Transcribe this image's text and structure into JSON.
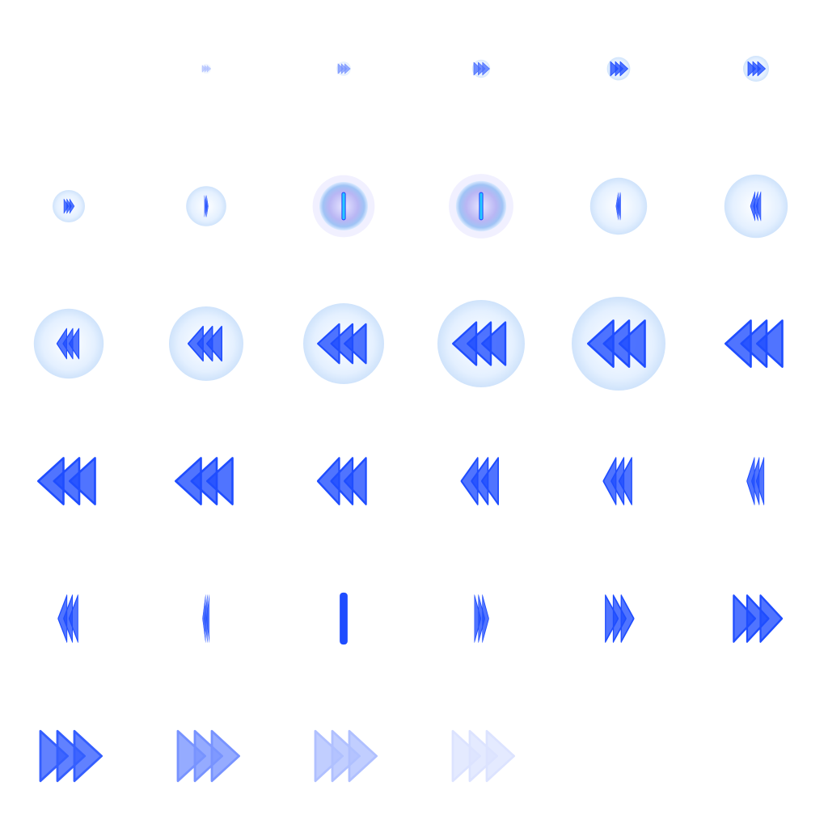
{
  "sheet": {
    "kind": "sprite-sheet",
    "description_visible_text": "",
    "accent": "#1f4dff",
    "accent_light": "#7f9bff",
    "glow": "#e4f0ff",
    "glow_rim": "#cfe3fb",
    "bar_highlight": "#27c7ff",
    "frames": [
      {
        "icon": "fast-forward-icon",
        "bubble": 0.15,
        "arrows": 0.1,
        "opacity": 0.35,
        "flip": false,
        "squash": 1.0
      },
      {
        "icon": "fast-forward-icon",
        "bubble": 0.22,
        "arrows": 0.14,
        "opacity": 0.6,
        "flip": false,
        "squash": 1.0
      },
      {
        "icon": "fast-forward-icon",
        "bubble": 0.28,
        "arrows": 0.18,
        "opacity": 0.8,
        "flip": false,
        "squash": 1.0
      },
      {
        "icon": "fast-forward-icon",
        "bubble": 0.36,
        "arrows": 0.2,
        "opacity": 1,
        "flip": false,
        "squash": 1.0
      },
      {
        "icon": "fast-forward-icon",
        "bubble": 0.4,
        "arrows": 0.2,
        "opacity": 1,
        "flip": false,
        "squash": 1.0
      },
      {
        "icon": "fast-forward-icon",
        "bubble": 0.5,
        "arrows": 0.2,
        "opacity": 1,
        "flip": false,
        "squash": 0.6
      },
      {
        "icon": "bar-icon",
        "bubble": 0.62,
        "arrows": 0.3,
        "opacity": 1,
        "flip": false,
        "squash": 0.15
      },
      {
        "icon": "bar-icon",
        "bubble": 0.75,
        "arrows": 0.35,
        "opacity": 1,
        "flip": false,
        "squash": 0.08,
        "purple": true
      },
      {
        "icon": "bar-icon",
        "bubble": 0.78,
        "arrows": 0.35,
        "opacity": 1,
        "flip": false,
        "squash": 0.08,
        "purple": true
      },
      {
        "icon": "bar-icon",
        "bubble": 0.88,
        "arrows": 0.38,
        "opacity": 1,
        "flip": true,
        "squash": 0.15
      },
      {
        "icon": "bar-icon",
        "bubble": 0.98,
        "arrows": 0.4,
        "opacity": 1,
        "flip": true,
        "squash": 0.3
      },
      {
        "icon": "rewind-icon",
        "bubble": 1.08,
        "arrows": 0.42,
        "opacity": 1,
        "flip": true,
        "squash": 0.6
      },
      {
        "icon": "rewind-icon",
        "bubble": 1.15,
        "arrows": 0.48,
        "opacity": 1,
        "flip": true,
        "squash": 0.8
      },
      {
        "icon": "rewind-icon",
        "bubble": 1.25,
        "arrows": 0.55,
        "opacity": 1,
        "flip": true,
        "squash": 1.0
      },
      {
        "icon": "rewind-icon",
        "bubble": 1.35,
        "arrows": 0.6,
        "opacity": 1,
        "flip": true,
        "squash": 1.0
      },
      {
        "icon": "rewind-icon",
        "bubble": 1.45,
        "arrows": 0.65,
        "opacity": 1,
        "flip": true,
        "squash": 1.0
      },
      {
        "icon": "rewind-icon",
        "bubble": 0,
        "arrows": 0.65,
        "opacity": 1,
        "flip": true,
        "squash": 1.0
      },
      {
        "icon": "rewind-icon",
        "bubble": 0,
        "arrows": 0.65,
        "opacity": 1,
        "flip": true,
        "squash": 1.0
      },
      {
        "icon": "rewind-icon",
        "bubble": 0,
        "arrows": 0.65,
        "opacity": 1,
        "flip": true,
        "squash": 1.0
      },
      {
        "icon": "rewind-icon",
        "bubble": 0,
        "arrows": 0.65,
        "opacity": 1,
        "flip": true,
        "squash": 0.85
      },
      {
        "icon": "rewind-icon",
        "bubble": 0,
        "arrows": 0.65,
        "opacity": 1,
        "flip": true,
        "squash": 0.65
      },
      {
        "icon": "rewind-icon",
        "bubble": 0,
        "arrows": 0.65,
        "opacity": 1,
        "flip": true,
        "squash": 0.5
      },
      {
        "icon": "rewind-icon",
        "bubble": 0,
        "arrows": 0.65,
        "opacity": 1,
        "flip": true,
        "squash": 0.3
      },
      {
        "icon": "rewind-icon",
        "bubble": 0,
        "arrows": 0.65,
        "opacity": 1,
        "flip": true,
        "squash": 0.35
      },
      {
        "icon": "bar-icon",
        "bubble": 0,
        "arrows": 0.65,
        "opacity": 1,
        "flip": true,
        "squash": 0.12
      },
      {
        "icon": "bar-icon",
        "bubble": 0,
        "arrows": 0.65,
        "opacity": 1,
        "flip": false,
        "squash": 0.08
      },
      {
        "icon": "fast-forward-icon",
        "bubble": 0,
        "arrows": 0.65,
        "opacity": 1,
        "flip": false,
        "squash": 0.25
      },
      {
        "icon": "fast-forward-icon",
        "bubble": 0,
        "arrows": 0.65,
        "opacity": 1,
        "flip": false,
        "squash": 0.5
      },
      {
        "icon": "fast-forward-icon",
        "bubble": 0,
        "arrows": 0.65,
        "opacity": 1,
        "flip": false,
        "squash": 0.85
      },
      {
        "icon": "fast-forward-icon",
        "bubble": 0,
        "arrows": 0.7,
        "opacity": 0.9,
        "flip": false,
        "squash": 1.0
      },
      {
        "icon": "fast-forward-icon",
        "bubble": 0,
        "arrows": 0.7,
        "opacity": 0.6,
        "flip": false,
        "squash": 1.0
      },
      {
        "icon": "fast-forward-icon",
        "bubble": 0,
        "arrows": 0.7,
        "opacity": 0.35,
        "flip": false,
        "squash": 1.0
      },
      {
        "icon": "fast-forward-icon",
        "bubble": 0,
        "arrows": 0.7,
        "opacity": 0.15,
        "flip": false,
        "squash": 1.0
      }
    ]
  }
}
